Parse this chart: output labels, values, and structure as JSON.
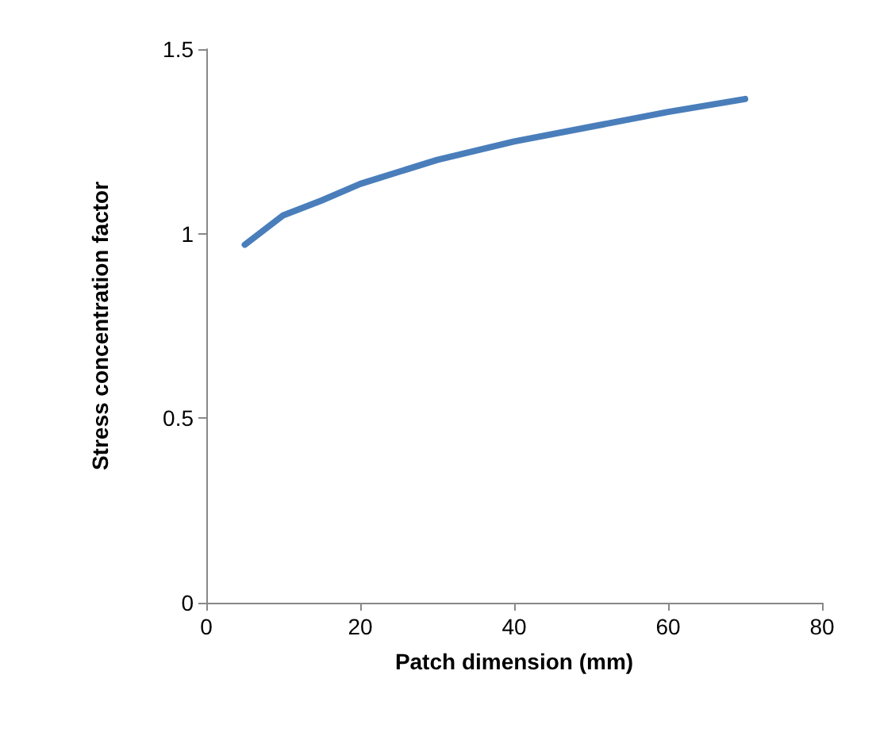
{
  "chart_data": {
    "type": "line",
    "xlabel": "Patch dimension (mm)",
    "ylabel": "Stress concentration factor",
    "x": [
      5,
      10,
      15,
      20,
      30,
      40,
      50,
      60,
      70
    ],
    "series": [
      {
        "color": "#4a7ebb",
        "values": [
          0.97,
          1.05,
          1.09,
          1.135,
          1.2,
          1.25,
          1.29,
          1.33,
          1.365
        ]
      }
    ],
    "xlim": [
      0,
      80
    ],
    "xticks": [
      0,
      20,
      40,
      60,
      80
    ],
    "ylim": [
      0,
      1.5
    ],
    "yticks": [
      0,
      0.5,
      1,
      1.5
    ],
    "grid": false,
    "marker": "none",
    "line_style": "solid"
  }
}
